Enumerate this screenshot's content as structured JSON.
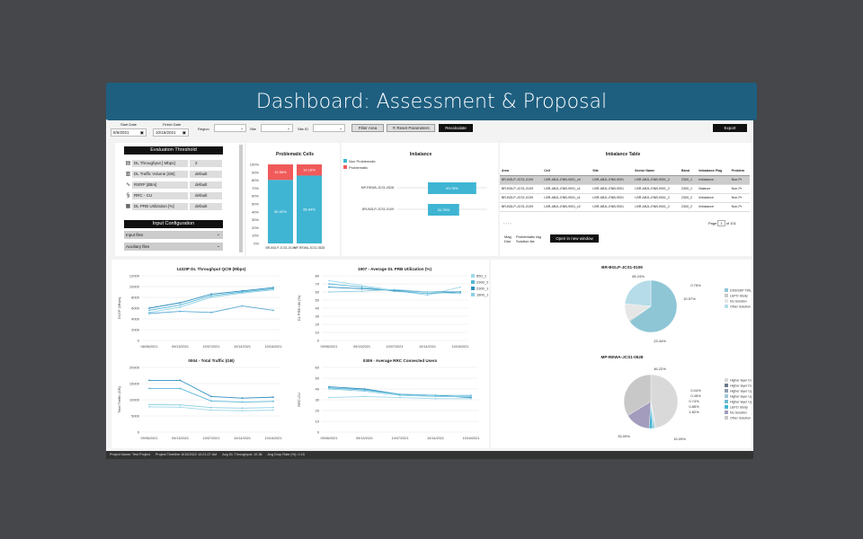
{
  "banner_title": "Dashboard: Assessment & Proposal",
  "filters": {
    "start_date_label": "Start Date",
    "start_date_value": "8/6/2021",
    "finish_date_label": "Finish Date",
    "finish_date_value": "10/16/2021",
    "region_label": "Region",
    "site_label": "Site",
    "site_id_label": "Site ID",
    "filter_area": "Filter Area",
    "reset_parameters": "Reset Parameters",
    "recalculate": "Recalculate",
    "export": "Export"
  },
  "threshold": {
    "title": "Evaluation Threshold",
    "rows": [
      {
        "icon": "chart-icon",
        "label": "DL Throughput [ Mbps]",
        "value": "2"
      },
      {
        "icon": "bar-icon",
        "label": "DL Traffic Volume [GB]",
        "value": "default"
      },
      {
        "icon": "signal-icon",
        "label": "RSRP [dBm]",
        "value": "default"
      },
      {
        "icon": "users-icon",
        "label": "RRC - CU",
        "value": "default"
      },
      {
        "icon": "grid-icon",
        "label": "DL PRB Utilization [%]",
        "value": "default"
      }
    ]
  },
  "input_config": {
    "title": "Input Configuration",
    "input_files": "Input files",
    "auxiliary_files": "Auxiliary files"
  },
  "problematic_chart": {
    "chart_data": {
      "type": "bar",
      "title": "Problematic Cells",
      "categories": [
        "BR-BGLP-JCS1-0109",
        "MP-REWA-JCS1-0528"
      ],
      "series": [
        {
          "name": "Non Problematic",
          "values": [
            80.42,
            85.84
          ],
          "labels": [
            "80.42%",
            "85.84%"
          ],
          "color": "#3fb5d3"
        },
        {
          "name": "Problematic",
          "values": [
            19.58,
            14.16
          ],
          "labels": [
            "19.58%",
            "14.16%"
          ],
          "color": "#f05a5a"
        }
      ],
      "yticks": [
        "100%",
        "90%",
        "80%",
        "70%",
        "60%",
        "50%",
        "40%",
        "30%",
        "20%",
        "10%",
        "0%"
      ],
      "ylim": [
        0,
        100
      ]
    }
  },
  "imbalance_chart": {
    "chart_data": {
      "type": "bar",
      "title": "Imbalance",
      "categories": [
        "MP-REWA-JCS1-0528",
        "BR-BGLP-JCS1-0109"
      ],
      "values": [
        53.78,
        34.76
      ],
      "labels": [
        "53.78%",
        "34.76%"
      ],
      "color": "#3fb5d3"
    }
  },
  "imbalance_table": {
    "title": "Imbalance Table",
    "columns": [
      "Area",
      "Cell",
      "Site",
      "Sector Name",
      "Band",
      "Imbalance Flag",
      "Problem"
    ],
    "rows": [
      [
        "BR-BGLP-JCS1-0109",
        "I-BR-ABJL-ENB-9001_c0",
        "I-BR-ABJL-ENB-9001",
        "I-BR-ABJL-ENB-9001_2",
        "2300_1",
        "Imbalance",
        "Non-Pr"
      ],
      [
        "BR-BGLP-JCS1-0109",
        "I-BR-ABJL-ENB-9001_c1",
        "I-BR-ABJL-ENB-9001",
        "I-BR-ABJL-ENB-9001_2",
        "2300_1",
        "Balance",
        "Non-Pr"
      ],
      [
        "BR-BGLP-JCS1-0109",
        "I-BR-ABJL-ENB-9001_c1",
        "I-BR-ABJL-ENB-9001",
        "I-BR-ABJL-ENB-9001_2",
        "2300_2",
        "Imbalance",
        "Non-Pr"
      ],
      [
        "BR-BGLP-JCS1-0109",
        "I-BR-ABJL-ENB-9001_c2",
        "I-BR-ABJL-ENB-9001",
        "I-BR-ABJL-ENB-9001_2",
        "2300_2",
        "Imbalance",
        "Non-Pr"
      ]
    ],
    "page_label": "Page",
    "page_value": "1",
    "page_of": "of",
    "page_total": "101",
    "mag_label": "Mag",
    "dist_label": "Dist",
    "problematic_tag": "Problematic tag",
    "solution_list": "Solution list",
    "open_new_window": "Open in new window"
  },
  "line_charts": [
    {
      "chart_data": {
        "type": "line",
        "title": "1432IP DL Throughput QCI9 (Mbps)",
        "ylabel": "DLGP (Mbps)",
        "x": [
          "08/06/2021",
          "09/13/2021",
          "10/07/2021",
          "10/14/2021",
          "10/16/2021"
        ],
        "yticks": [
          "0",
          "2000",
          "4000",
          "6000",
          "8000",
          "10000",
          "12000"
        ],
        "ylim": [
          0,
          12000
        ],
        "series": [
          {
            "values": [
              6000,
              7000,
              8600,
              9200,
              9800
            ],
            "color": "#2f8fbf"
          },
          {
            "values": [
              5600,
              6600,
              8300,
              9000,
              9600
            ],
            "color": "#57b6d6"
          },
          {
            "values": [
              5200,
              6200,
              8000,
              8800,
              9400
            ],
            "color": "#8fd0e4"
          },
          {
            "values": [
              5000,
              5400,
              5200,
              6400,
              5600
            ],
            "color": "#5aa9d6"
          }
        ]
      }
    },
    {
      "chart_data": {
        "type": "line",
        "title": "1907 - Average DL PRB Utilization (%)",
        "ylabel": "DL PRB Util (%)",
        "x": [
          "09/06/2021",
          "09/13/2021",
          "10/07/2021",
          "10/14/2021",
          "10/16/2021"
        ],
        "yticks": [
          "0",
          "10",
          "20",
          "30",
          "40",
          "50",
          "60",
          "70",
          "80"
        ],
        "ylim": [
          0,
          80
        ],
        "legend": [
          "850_1",
          "2300_2",
          "2300_1",
          "1800_1"
        ],
        "series": [
          {
            "name": "850_1",
            "values": [
              74,
              68,
              62,
              56,
              66
            ],
            "color": "#9fd8ea"
          },
          {
            "name": "2300_2",
            "values": [
              70,
              66,
              61,
              58,
              60
            ],
            "color": "#57b6d6"
          },
          {
            "name": "2300_1",
            "values": [
              66,
              64,
              62,
              60,
              60
            ],
            "color": "#2f8fbf"
          },
          {
            "name": "1800_1",
            "values": [
              60,
              61,
              63,
              60,
              58
            ],
            "color": "#8fd0e4"
          }
        ]
      }
    },
    {
      "chart_data": {
        "type": "line",
        "title": "0004 - Total Traffic (GB)",
        "ylabel": "Total Traffic (GB)",
        "x": [
          "09/06/2021",
          "09/13/2021",
          "10/07/2021",
          "10/14/2021",
          "10/16/2021"
        ],
        "yticks": [
          "0",
          "5000",
          "10000",
          "15000",
          "20000"
        ],
        "ylim": [
          0,
          20000
        ],
        "series": [
          {
            "values": [
              16000,
              16000,
              11000,
              10500,
              10800
            ],
            "color": "#2f8fbf"
          },
          {
            "values": [
              13500,
              13500,
              9600,
              9300,
              9500
            ],
            "color": "#57b6d6"
          },
          {
            "values": [
              8500,
              8400,
              7600,
              7400,
              7600
            ],
            "color": "#8fd0e4"
          },
          {
            "values": [
              7800,
              7700,
              6800,
              6600,
              6800
            ],
            "color": "#9fd8ea"
          }
        ]
      }
    },
    {
      "chart_data": {
        "type": "line",
        "title": "0309 - Average RRC Connected Users",
        "ylabel": "RRC-CU",
        "x": [
          "09/06/2021",
          "09/13/2021",
          "10/07/2021",
          "10/14/2021",
          "10/16/2021"
        ],
        "yticks": [
          "0",
          "10",
          "20",
          "30",
          "40",
          "50",
          "60"
        ],
        "ylim": [
          0,
          60
        ],
        "series": [
          {
            "values": [
              42,
              40,
              35,
              34,
              32
            ],
            "color": "#2f8fbf"
          },
          {
            "values": [
              41,
              39,
              35,
              34,
              34
            ],
            "color": "#57b6d6"
          },
          {
            "values": [
              40,
              38,
              34,
              33,
              33
            ],
            "color": "#8fd0e4"
          },
          {
            "values": [
              32,
              33,
              32,
              31,
              31
            ],
            "color": "#9fd8ea"
          }
        ]
      }
    }
  ],
  "pie_charts": [
    {
      "chart_data": {
        "type": "pie",
        "title": "BR-BGLP-JCS1-0109",
        "values": [
          65.24,
          0.75,
          10.57,
          23.44
        ],
        "labels": [
          "65.24%",
          "0.75%",
          "10.57%",
          "23.44%"
        ],
        "legend": [
          "DSS/SSP TWLE",
          "LEPO Study",
          "No Solution",
          "Other Solution"
        ],
        "colors": [
          "#8ec6d6",
          "#c9c9c9",
          "#e6e6e6",
          "#b5dce8"
        ]
      }
    },
    {
      "chart_data": {
        "type": "pie",
        "title": "MP-REWA-JCS1-0528",
        "values": [
          46.22,
          0.04,
          0.45,
          0.74,
          0.85,
          1.82,
          15.09,
          33.09
        ],
        "labels": [
          "46.22%",
          "0.04%",
          "0.45%",
          "0.74%",
          "0.85%",
          "1.82%",
          "15.09%",
          "33.09%"
        ],
        "legend": [
          "Higher layer Downtilt 1 degree",
          "Higher layer Downtilt 2 degree",
          "Higher layer Uptilt 1 degree",
          "Higher layer Uptilt 2 degree",
          "Higher layer Uptilt 3 degree",
          "LEPO Study",
          "No Solution",
          "Other Solution"
        ],
        "colors": [
          "#d9d9d9",
          "#6b7a8c",
          "#8ea0b3",
          "#9ec8d8",
          "#6fb7cf",
          "#3fb5d3",
          "#a39cbc",
          "#c8c8c8"
        ]
      }
    }
  ],
  "status_bar": [
    "Project Name: Test Project",
    "Project Timeline: 8/15/2022 10:21:27 AM",
    "Avg DL Throughput: 10.38",
    "Avg Drop Rate (%): 0.15"
  ]
}
